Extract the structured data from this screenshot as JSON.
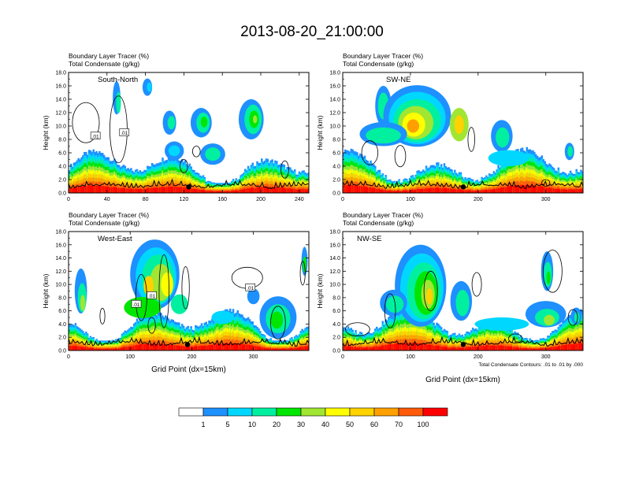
{
  "page": {
    "title": "2013-08-20_21:00:00"
  },
  "chart_data": [
    {
      "type": "heatmap",
      "panel_label": "South-North",
      "title_line1": "Boundary Layer Tracer   (%)",
      "title_line2": "Total Condensate   (g/kg)",
      "ylabel": "Height (km)",
      "xlabel": "",
      "xlim": [
        0,
        250
      ],
      "ylim": [
        0,
        18
      ],
      "x_ticks": [
        0,
        40,
        80,
        120,
        160,
        200,
        240
      ],
      "y_ticks": [
        "0.0",
        "2.0",
        "4.0",
        "6.0",
        "8.0",
        "10.0",
        "12.0",
        "14.0",
        "16.0",
        "18.0"
      ],
      "marker_x": 125,
      "contour_labels": [
        ".01",
        ".01"
      ],
      "note": ""
    },
    {
      "type": "heatmap",
      "panel_label": "SW-NE",
      "title_line1": "Boundary Layer Tracer   (%)",
      "title_line2": "Total Condensate   (g/kg)",
      "ylabel": "Height (km)",
      "xlabel": "",
      "xlim": [
        0,
        355
      ],
      "ylim": [
        0,
        18
      ],
      "x_ticks": [
        0,
        100,
        200,
        300
      ],
      "y_ticks": [
        "0.0",
        "2.0",
        "4.0",
        "6.0",
        "8.0",
        "10.0",
        "12.0",
        "14.0",
        "16.0",
        "18.0"
      ],
      "marker_x": 178,
      "contour_labels": [],
      "note": ""
    },
    {
      "type": "heatmap",
      "panel_label": "West-East",
      "title_line1": "Boundary Layer Tracer   (%)",
      "title_line2": "Total Condensate   (g/kg)",
      "ylabel": "Height (km)",
      "xlabel": "Grid Point (dx=15km)",
      "xlim": [
        0,
        390
      ],
      "ylim": [
        0,
        18
      ],
      "x_ticks": [
        0,
        100,
        200,
        300
      ],
      "y_ticks": [
        "0.0",
        "2.0",
        "4.0",
        "6.0",
        "8.0",
        "10.0",
        "12.0",
        "14.0",
        "16.0",
        "18.0"
      ],
      "marker_x": 193,
      "contour_labels": [
        ".01",
        ".01",
        ".01"
      ],
      "note": ""
    },
    {
      "type": "heatmap",
      "panel_label": "NW-SE",
      "title_line1": "Boundary Layer Tracer   (%)",
      "title_line2": "Total Condensate   (g/kg)",
      "ylabel": "Height (km)",
      "xlabel": "Grid Point (dx=15km)",
      "xlim": [
        0,
        355
      ],
      "ylim": [
        0,
        18
      ],
      "x_ticks": [
        0,
        100,
        200,
        300
      ],
      "y_ticks": [
        "0.0",
        "2.0",
        "4.0",
        "6.0",
        "8.0",
        "10.0",
        "12.0",
        "14.0",
        "16.0",
        "18.0"
      ],
      "marker_x": 178,
      "contour_labels": [],
      "note": "Total Condensate Contours: .01 to .01 by .000"
    }
  ],
  "colorbar": {
    "colors": [
      "#ffffff",
      "#1e90ff",
      "#00d7ff",
      "#00f0a0",
      "#00e600",
      "#a0e632",
      "#ffff00",
      "#ffd200",
      "#ffa000",
      "#ff5a0a",
      "#ff0000"
    ],
    "labels": [
      "1",
      "5",
      "10",
      "20",
      "30",
      "40",
      "50",
      "60",
      "70",
      "100"
    ]
  }
}
